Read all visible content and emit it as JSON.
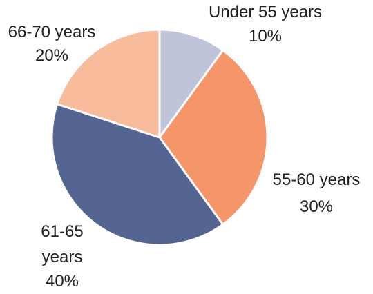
{
  "chart_data": {
    "type": "pie",
    "title": "",
    "start_angle_deg": 0,
    "direction": "clockwise",
    "legend": "none",
    "slices": [
      {
        "label": "Under 55 years",
        "value": 10,
        "value_label": "10%",
        "color": "#c0c4d9"
      },
      {
        "label": "55-60 years",
        "value": 30,
        "value_label": "30%",
        "color": "#f5956a"
      },
      {
        "label": "61-65 years",
        "value": 40,
        "value_label": "40%",
        "color": "#536590"
      },
      {
        "label": "66-70 years",
        "value": 20,
        "value_label": "20%",
        "color": "#f8bb9b"
      }
    ]
  }
}
